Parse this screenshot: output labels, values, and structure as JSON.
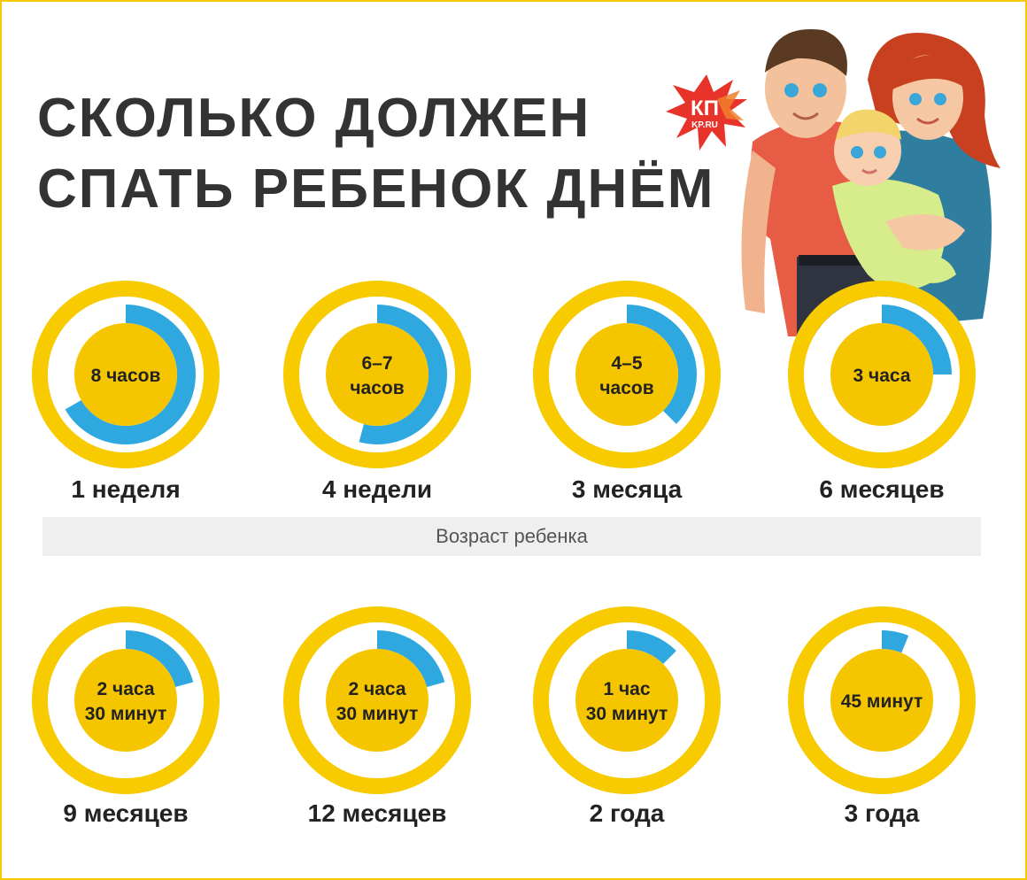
{
  "title": {
    "line1": "СКОЛЬКО ДОЛЖЕН",
    "line2": "СПАТЬ РЕБЕНОК ДНЁМ"
  },
  "logo": {
    "main": "КП",
    "sub": "KP.RU"
  },
  "axis_label": "Возраст ребенка",
  "colors": {
    "ring": "#f7cb00",
    "inner": "#f5c500",
    "arc": "#2fa8e0",
    "text": "#222222",
    "title": "#333333"
  },
  "chart_data": {
    "type": "pie",
    "title": "СКОЛЬКО ДОЛЖЕН СПАТЬ РЕБЕНОК ДНЁМ",
    "xlabel": "Возраст ребенка",
    "unit": "hours",
    "categories": [
      "1 неделя",
      "4 недели",
      "3 месяца",
      "6 месяцев",
      "9 месяцев",
      "12 месяцев",
      "2 года",
      "3 года"
    ],
    "values": [
      8,
      6.5,
      4.5,
      3,
      2.5,
      2.5,
      1.5,
      0.75
    ],
    "labels": [
      [
        "8 часов"
      ],
      [
        "6–7",
        "часов"
      ],
      [
        "4–5",
        "часов"
      ],
      [
        "3 часа"
      ],
      [
        "2 часа",
        "30 минут"
      ],
      [
        "2 часа",
        "30 минут"
      ],
      [
        "1 час",
        "30 минут"
      ],
      [
        "45 минут"
      ]
    ],
    "full_scale": 12
  }
}
